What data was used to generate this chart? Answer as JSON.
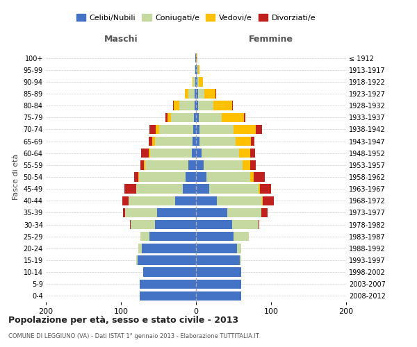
{
  "age_groups": [
    "0-4",
    "5-9",
    "10-14",
    "15-19",
    "20-24",
    "25-29",
    "30-34",
    "35-39",
    "40-44",
    "45-49",
    "50-54",
    "55-59",
    "60-64",
    "65-69",
    "70-74",
    "75-79",
    "80-84",
    "85-89",
    "90-94",
    "95-99",
    "100+"
  ],
  "birth_years": [
    "2008-2012",
    "2003-2007",
    "1998-2002",
    "1993-1997",
    "1988-1992",
    "1983-1987",
    "1978-1982",
    "1973-1977",
    "1968-1972",
    "1963-1967",
    "1958-1962",
    "1953-1957",
    "1948-1952",
    "1943-1947",
    "1938-1942",
    "1933-1937",
    "1928-1932",
    "1923-1927",
    "1918-1922",
    "1913-1917",
    "≤ 1912"
  ],
  "males": {
    "celibe": [
      75,
      75,
      70,
      78,
      72,
      62,
      55,
      52,
      28,
      18,
      14,
      10,
      6,
      5,
      4,
      3,
      2,
      2,
      1,
      1,
      1
    ],
    "coniugato": [
      0,
      0,
      0,
      2,
      5,
      12,
      32,
      42,
      62,
      62,
      62,
      58,
      55,
      50,
      45,
      30,
      20,
      8,
      3,
      1,
      0
    ],
    "vedovo": [
      0,
      0,
      0,
      0,
      0,
      0,
      0,
      0,
      0,
      0,
      1,
      1,
      2,
      3,
      5,
      5,
      8,
      5,
      1,
      0,
      0
    ],
    "divorziato": [
      0,
      0,
      0,
      0,
      0,
      0,
      1,
      3,
      8,
      15,
      5,
      5,
      10,
      5,
      8,
      3,
      1,
      0,
      0,
      0,
      0
    ]
  },
  "females": {
    "nubile": [
      60,
      60,
      60,
      58,
      55,
      50,
      48,
      42,
      28,
      18,
      14,
      10,
      7,
      5,
      5,
      4,
      3,
      3,
      2,
      2,
      1
    ],
    "coniugata": [
      0,
      0,
      0,
      2,
      5,
      20,
      35,
      45,
      60,
      65,
      58,
      52,
      50,
      48,
      45,
      30,
      20,
      8,
      2,
      1,
      0
    ],
    "vedova": [
      0,
      0,
      0,
      0,
      0,
      0,
      0,
      0,
      1,
      2,
      5,
      10,
      15,
      20,
      30,
      30,
      25,
      15,
      5,
      2,
      1
    ],
    "divorziata": [
      0,
      0,
      0,
      0,
      0,
      0,
      1,
      8,
      15,
      15,
      15,
      8,
      7,
      5,
      8,
      2,
      1,
      1,
      0,
      0,
      0
    ]
  },
  "colors": {
    "celibe": "#4472C4",
    "coniugato": "#C5D9A0",
    "vedovo": "#FFC000",
    "divorziato": "#C0211F"
  },
  "xlim": 200,
  "title": "Popolazione per età, sesso e stato civile - 2013",
  "subtitle": "COMUNE DI LEGGIUNO (VA) - Dati ISTAT 1° gennaio 2013 - Elaborazione TUTTITALIA.IT",
  "ylabel_left": "Fasce di età",
  "xlabel_left": "Maschi",
  "xlabel_right": "Femmine",
  "legend_labels": [
    "Celibi/Nubili",
    "Coniugati/e",
    "Vedovi/e",
    "Divorziati/e"
  ],
  "bg_color": "#FFFFFF",
  "grid_color": "#CCCCCC"
}
